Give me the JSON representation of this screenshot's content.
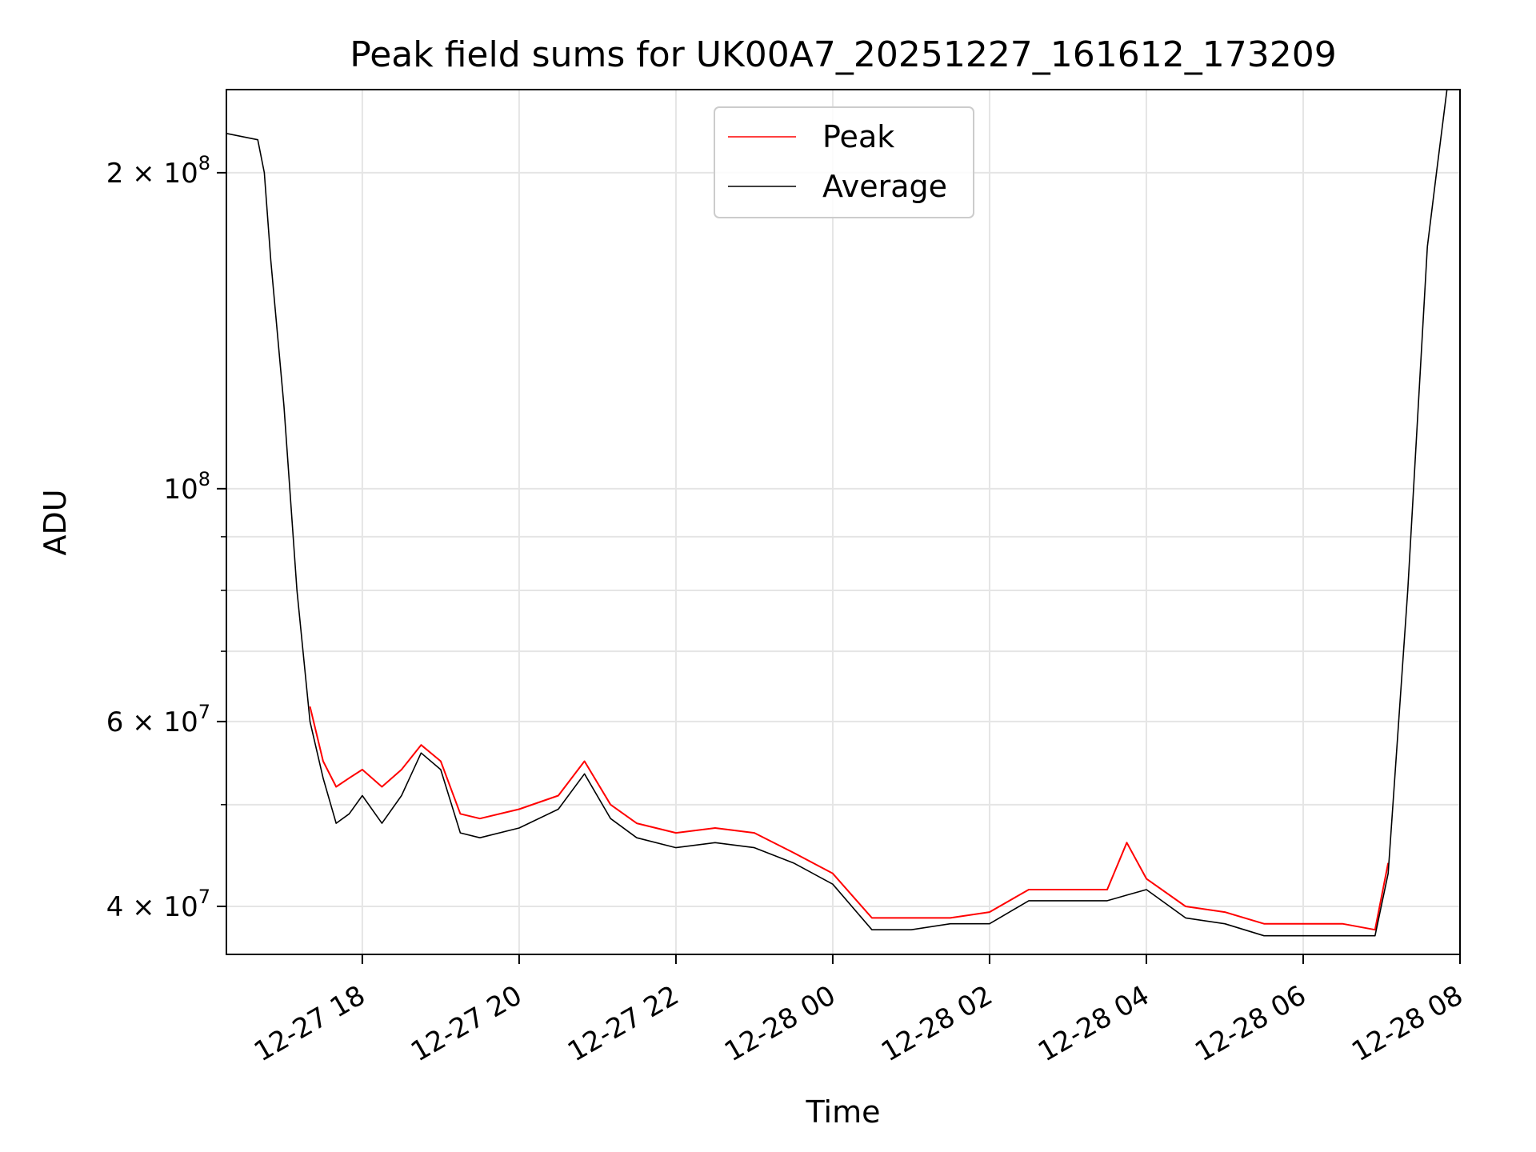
{
  "chart_data": {
    "type": "line",
    "title": "Peak field sums for UK00A7_20251227_161612_173209",
    "xlabel": "Time",
    "ylabel": "ADU",
    "yscale": "log",
    "ylim": [
      36000000,
      240000000
    ],
    "xlim": [
      "2025-12-27 16:16",
      "2025-12-28 08:00"
    ],
    "grid": true,
    "legend_position": "upper center",
    "x_ticks": [
      {
        "t": "2025-12-27 18:00",
        "label": "12-27 18"
      },
      {
        "t": "2025-12-27 20:00",
        "label": "12-27 20"
      },
      {
        "t": "2025-12-27 22:00",
        "label": "12-27 22"
      },
      {
        "t": "2025-12-28 00:00",
        "label": "12-28 00"
      },
      {
        "t": "2025-12-28 02:00",
        "label": "12-28 02"
      },
      {
        "t": "2025-12-28 04:00",
        "label": "12-28 04"
      },
      {
        "t": "2025-12-28 06:00",
        "label": "12-28 06"
      },
      {
        "t": "2025-12-28 08:00",
        "label": "12-28 08"
      }
    ],
    "y_ticks": [
      {
        "v": 40000000,
        "mant": "4",
        "exp": "7",
        "style": "mant"
      },
      {
        "v": 60000000,
        "mant": "6",
        "exp": "7",
        "style": "mant"
      },
      {
        "v": 100000000,
        "mant": "10",
        "exp": "8",
        "style": "pow"
      },
      {
        "v": 200000000,
        "mant": "2",
        "exp": "8",
        "style": "mant"
      }
    ],
    "y_minor_ticks": [
      50000000,
      70000000,
      80000000,
      90000000
    ],
    "series": [
      {
        "name": "Peak",
        "color": "#ff0000",
        "x": [
          "2025-12-27 17:20",
          "2025-12-27 17:30",
          "2025-12-27 17:40",
          "2025-12-27 17:50",
          "2025-12-27 18:00",
          "2025-12-27 18:15",
          "2025-12-27 18:30",
          "2025-12-27 18:45",
          "2025-12-27 19:00",
          "2025-12-27 19:15",
          "2025-12-27 19:30",
          "2025-12-27 20:00",
          "2025-12-27 20:30",
          "2025-12-27 20:50",
          "2025-12-27 21:10",
          "2025-12-27 21:30",
          "2025-12-27 22:00",
          "2025-12-27 22:30",
          "2025-12-27 23:00",
          "2025-12-27 23:30",
          "2025-12-28 00:00",
          "2025-12-28 00:30",
          "2025-12-28 01:00",
          "2025-12-28 01:30",
          "2025-12-28 02:00",
          "2025-12-28 02:30",
          "2025-12-28 03:00",
          "2025-12-28 03:30",
          "2025-12-28 03:45",
          "2025-12-28 04:00",
          "2025-12-28 04:30",
          "2025-12-28 05:00",
          "2025-12-28 05:30",
          "2025-12-28 06:00",
          "2025-12-28 06:30",
          "2025-12-28 06:55",
          "2025-12-28 07:05"
        ],
        "values": [
          62000000,
          55000000,
          52000000,
          53000000,
          54000000,
          52000000,
          54000000,
          57000000,
          55000000,
          49000000,
          48500000,
          49500000,
          51000000,
          55000000,
          50000000,
          48000000,
          47000000,
          47500000,
          47000000,
          45000000,
          43000000,
          39000000,
          39000000,
          39000000,
          39500000,
          41500000,
          41500000,
          41500000,
          46000000,
          42500000,
          40000000,
          39500000,
          38500000,
          38500000,
          38500000,
          38000000,
          44000000
        ]
      },
      {
        "name": "Average",
        "color": "#000000",
        "x": [
          "2025-12-27 16:16",
          "2025-12-27 16:40",
          "2025-12-27 16:45",
          "2025-12-27 16:50",
          "2025-12-27 17:00",
          "2025-12-27 17:10",
          "2025-12-27 17:20",
          "2025-12-27 17:30",
          "2025-12-27 17:40",
          "2025-12-27 17:50",
          "2025-12-27 18:00",
          "2025-12-27 18:15",
          "2025-12-27 18:30",
          "2025-12-27 18:45",
          "2025-12-27 19:00",
          "2025-12-27 19:15",
          "2025-12-27 19:30",
          "2025-12-27 20:00",
          "2025-12-27 20:30",
          "2025-12-27 20:50",
          "2025-12-27 21:10",
          "2025-12-27 21:30",
          "2025-12-27 22:00",
          "2025-12-27 22:30",
          "2025-12-27 23:00",
          "2025-12-27 23:30",
          "2025-12-28 00:00",
          "2025-12-28 00:30",
          "2025-12-28 01:00",
          "2025-12-28 01:30",
          "2025-12-28 02:00",
          "2025-12-28 02:30",
          "2025-12-28 03:00",
          "2025-12-28 03:30",
          "2025-12-28 03:45",
          "2025-12-28 04:00",
          "2025-12-28 04:30",
          "2025-12-28 05:00",
          "2025-12-28 05:30",
          "2025-12-28 06:00",
          "2025-12-28 06:30",
          "2025-12-28 06:55",
          "2025-12-28 07:05",
          "2025-12-28 07:20",
          "2025-12-28 07:35",
          "2025-12-28 07:42",
          "2025-12-28 07:50"
        ],
        "values": [
          218000000,
          215000000,
          200000000,
          165000000,
          120000000,
          80000000,
          60000000,
          53000000,
          48000000,
          49000000,
          51000000,
          48000000,
          51000000,
          56000000,
          54000000,
          47000000,
          46500000,
          47500000,
          49500000,
          53500000,
          48500000,
          46500000,
          45500000,
          46000000,
          45500000,
          44000000,
          42000000,
          38000000,
          38000000,
          38500000,
          38500000,
          40500000,
          40500000,
          40500000,
          41000000,
          41500000,
          39000000,
          38500000,
          37500000,
          37500000,
          37500000,
          37500000,
          43000000,
          80000000,
          170000000,
          200000000,
          240000000
        ]
      }
    ]
  }
}
